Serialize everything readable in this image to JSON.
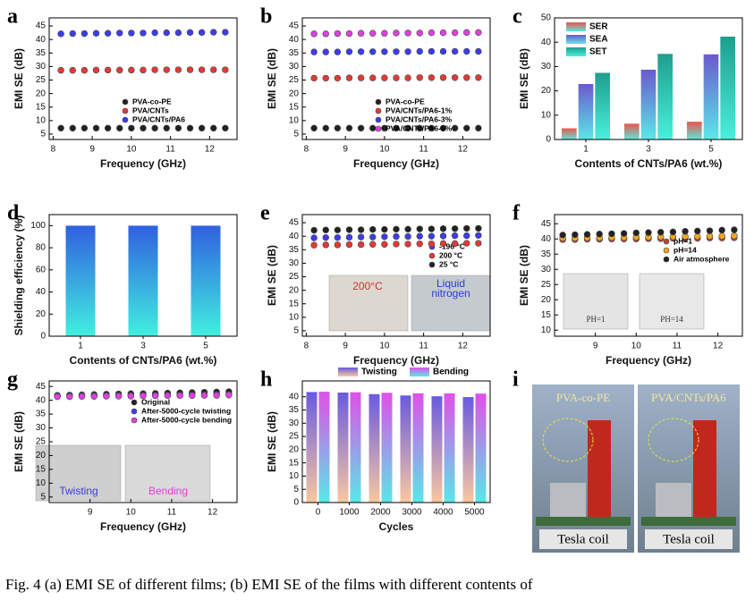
{
  "caption": "Fig. 4 (a) EMI SE of different films; (b) EMI SE of the films with different contents of",
  "photo": {
    "panel_label": "i",
    "labels": [
      "PVA-co-PE",
      "PVA/CNTs/PA6",
      "Tesla coil",
      "Tesla coil"
    ]
  },
  "chart_data": [
    {
      "type": "line",
      "panel_label": "a",
      "x_label": "Frequency (GHz)",
      "y_label": "EMI SE (dB)",
      "x": [
        8.2,
        8.5,
        8.8,
        9.1,
        9.4,
        9.7,
        10,
        10.3,
        10.6,
        10.9,
        11.2,
        11.5,
        11.8,
        12.1,
        12.4
      ],
      "xlim": [
        7.9,
        12.7
      ],
      "xticks": [
        8,
        9,
        10,
        11,
        12
      ],
      "ylim": [
        3,
        48
      ],
      "yticks": [
        5,
        10,
        15,
        20,
        25,
        30,
        35,
        40,
        45
      ],
      "legend": "lower center",
      "series": [
        {
          "name": "PVA-co-PE",
          "color": "#222222",
          "values": [
            7.2,
            7.2,
            7.2,
            7.2,
            7.2,
            7.2,
            7.2,
            7.2,
            7.2,
            7.2,
            7.2,
            7.2,
            7.2,
            7.2,
            7.2
          ]
        },
        {
          "name": "PVA/CNTs",
          "color": "#e53935",
          "values": [
            28.6,
            28.6,
            28.6,
            28.7,
            28.7,
            28.7,
            28.7,
            28.7,
            28.8,
            28.8,
            28.8,
            28.8,
            28.8,
            28.8,
            28.8
          ]
        },
        {
          "name": "PVA/CNTs/PA6",
          "color": "#3c3cf0",
          "values": [
            42.1,
            42.2,
            42.2,
            42.3,
            42.3,
            42.4,
            42.4,
            42.4,
            42.5,
            42.5,
            42.5,
            42.6,
            42.6,
            42.7,
            42.7
          ]
        }
      ]
    },
    {
      "type": "line",
      "panel_label": "b",
      "x_label": "Frequency (GHz)",
      "y_label": "EMI SE (dB)",
      "x": [
        8.2,
        8.5,
        8.8,
        9.1,
        9.4,
        9.7,
        10,
        10.3,
        10.6,
        10.9,
        11.2,
        11.5,
        11.8,
        12.1,
        12.4
      ],
      "xlim": [
        7.9,
        12.7
      ],
      "xticks": [
        8,
        9,
        10,
        11,
        12
      ],
      "ylim": [
        3,
        48
      ],
      "yticks": [
        5,
        10,
        15,
        20,
        25,
        30,
        35,
        40,
        45
      ],
      "legend": "lower center",
      "series": [
        {
          "name": "PVA-co-PE",
          "color": "#222222",
          "values": [
            7.2,
            7.2,
            7.2,
            7.2,
            7.2,
            7.2,
            7.2,
            7.2,
            7.2,
            7.2,
            7.2,
            7.2,
            7.2,
            7.2,
            7.2
          ]
        },
        {
          "name": "PVA/CNTs/PA6-1%",
          "color": "#e53935",
          "values": [
            25.7,
            25.7,
            25.7,
            25.8,
            25.8,
            25.8,
            25.8,
            25.8,
            25.8,
            25.9,
            25.9,
            25.9,
            25.9,
            25.9,
            25.9
          ]
        },
        {
          "name": "PVA/CNTs/PA6-3%",
          "color": "#3c3cf0",
          "values": [
            35.4,
            35.4,
            35.4,
            35.5,
            35.5,
            35.5,
            35.5,
            35.5,
            35.5,
            35.6,
            35.6,
            35.6,
            35.6,
            35.6,
            35.6
          ]
        },
        {
          "name": "PVA/CNTs/PA6-5%",
          "color": "#e040e0",
          "values": [
            42.1,
            42.1,
            42.2,
            42.2,
            42.3,
            42.3,
            42.3,
            42.4,
            42.4,
            42.4,
            42.5,
            42.5,
            42.5,
            42.6,
            42.6
          ]
        }
      ]
    },
    {
      "type": "bar",
      "panel_label": "c",
      "x_label": "Contents of CNTs/PA6 (wt.%)",
      "y_label": "EMI SE (dB)",
      "categories": [
        "1",
        "3",
        "5"
      ],
      "ylim": [
        0,
        50
      ],
      "yticks": [
        0,
        10,
        20,
        30,
        40,
        50
      ],
      "legend": "upper left",
      "series": [
        {
          "name": "SER",
          "color": "#e8554e",
          "gradient_to": "#5ce8d8",
          "values": [
            4.6,
            6.5,
            7.3
          ]
        },
        {
          "name": "SEA",
          "color": "#6a5acd",
          "gradient_to": "#5ce8e8",
          "values": [
            22.8,
            28.7,
            35.0
          ]
        },
        {
          "name": "SET",
          "color": "#1e9e8e",
          "gradient_to": "#48f0dc",
          "values": [
            27.4,
            35.2,
            42.3
          ]
        }
      ]
    },
    {
      "type": "bar",
      "panel_label": "d",
      "x_label": "Contents of CNTs/PA6 (wt.%)",
      "y_label": "Shielding efficiency (%)",
      "categories": [
        "1",
        "3",
        "5"
      ],
      "values": [
        99.99,
        99.99,
        99.99
      ],
      "color": "#3060e0",
      "gradient_to": "#40f0e0",
      "ylim": [
        0,
        110
      ],
      "yticks": [
        0,
        20,
        40,
        60,
        80,
        100
      ]
    },
    {
      "type": "line",
      "panel_label": "e",
      "x_label": "Frequency (GHz)",
      "y_label": "EMI SE (dB)",
      "x": [
        8.2,
        8.5,
        8.8,
        9.1,
        9.4,
        9.7,
        10,
        10.3,
        10.6,
        10.9,
        11.2,
        11.5,
        11.8,
        12.1,
        12.4
      ],
      "xlim": [
        7.9,
        12.7
      ],
      "xticks": [
        8,
        9,
        10,
        11,
        12
      ],
      "ylim": [
        3,
        48
      ],
      "yticks": [
        5,
        10,
        15,
        20,
        25,
        30,
        35,
        40,
        45
      ],
      "legend": "center right",
      "annotations": [
        "200°C",
        "Liquid",
        "nitrogen"
      ],
      "series": [
        {
          "name": "-196 °C",
          "color": "#3c3cf0",
          "values": [
            39.4,
            39.5,
            39.5,
            39.6,
            39.7,
            39.7,
            39.8,
            39.9,
            39.9,
            40.0,
            40.0,
            40.1,
            40.2,
            40.2,
            40.3
          ]
        },
        {
          "name": "200 °C",
          "color": "#e53935",
          "values": [
            36.7,
            36.8,
            36.8,
            36.9,
            36.9,
            37.0,
            37.0,
            37.1,
            37.1,
            37.2,
            37.2,
            37.3,
            37.3,
            37.4,
            37.4
          ]
        },
        {
          "name": "25 °C",
          "color": "#222222",
          "values": [
            42.2,
            42.3,
            42.3,
            42.4,
            42.4,
            42.5,
            42.5,
            42.6,
            42.6,
            42.7,
            42.7,
            42.8,
            42.8,
            42.9,
            42.9
          ]
        }
      ]
    },
    {
      "type": "line",
      "panel_label": "f",
      "x_label": "Frequency (GHz)",
      "y_label": "EMI SE (dB)",
      "x": [
        8.2,
        8.5,
        8.8,
        9.1,
        9.4,
        9.7,
        10,
        10.3,
        10.6,
        10.9,
        11.2,
        11.5,
        11.8,
        12.1,
        12.4
      ],
      "xlim": [
        8.0,
        12.6
      ],
      "xticks": [
        9,
        10,
        11,
        12
      ],
      "ylim": [
        8,
        48
      ],
      "yticks": [
        10,
        15,
        20,
        25,
        30,
        35,
        40,
        45
      ],
      "legend": "upper right",
      "annotations": [
        "PH=1",
        "PH=14"
      ],
      "series": [
        {
          "name": "pH=1",
          "color": "#b5473a",
          "values": [
            39.8,
            39.8,
            39.9,
            39.9,
            40.0,
            40.0,
            40.0,
            40.1,
            40.1,
            40.2,
            40.2,
            40.2,
            40.3,
            40.3,
            40.4
          ]
        },
        {
          "name": "pH=14",
          "color": "#f5a623",
          "values": [
            40.3,
            40.3,
            40.4,
            40.4,
            40.5,
            40.5,
            40.6,
            40.6,
            40.7,
            40.7,
            40.8,
            40.8,
            40.9,
            40.9,
            41.0
          ]
        },
        {
          "name": "Air atmosphere",
          "color": "#222222",
          "values": [
            41.3,
            41.4,
            41.5,
            41.6,
            41.7,
            41.8,
            42.0,
            42.1,
            42.2,
            42.3,
            42.5,
            42.6,
            42.7,
            42.9,
            43.0
          ]
        }
      ]
    },
    {
      "type": "line",
      "panel_label": "g",
      "x_label": "Frequency (GHz)",
      "y_label": "EMI SE (dB)",
      "x": [
        8.2,
        8.5,
        8.8,
        9.1,
        9.4,
        9.7,
        10,
        10.3,
        10.6,
        10.9,
        11.2,
        11.5,
        11.8,
        12.1,
        12.4
      ],
      "xlim": [
        8.0,
        12.6
      ],
      "xticks": [
        9,
        10,
        11,
        12
      ],
      "ylim": [
        3,
        47
      ],
      "yticks": [
        5,
        10,
        15,
        20,
        25,
        30,
        35,
        40,
        45
      ],
      "legend": "upper center",
      "annotations": [
        "Twisting",
        "Bending"
      ],
      "series": [
        {
          "name": "Original",
          "color": "#222222",
          "values": [
            41.8,
            41.9,
            42.0,
            42.1,
            42.2,
            42.3,
            42.4,
            42.4,
            42.5,
            42.6,
            42.7,
            42.8,
            42.9,
            43.0,
            43.1
          ]
        },
        {
          "name": "After-5000-cycle twisting",
          "color": "#3c3cf0",
          "values": [
            41.6,
            41.6,
            41.7,
            41.7,
            41.7,
            41.8,
            41.8,
            41.8,
            41.9,
            41.9,
            41.9,
            42.0,
            42.0,
            42.1,
            42.1
          ]
        },
        {
          "name": "After-5000-cycle bending",
          "color": "#e040e0",
          "values": [
            41.3,
            41.3,
            41.4,
            41.4,
            41.5,
            41.5,
            41.5,
            41.6,
            41.6,
            41.7,
            41.7,
            41.7,
            41.8,
            41.8,
            41.9
          ]
        }
      ]
    },
    {
      "type": "bar",
      "panel_label": "h",
      "x_label": "Cycles",
      "y_label": "EMI SE (dB)",
      "categories": [
        "0",
        "1000",
        "2000",
        "3000",
        "4000",
        "5000"
      ],
      "ylim": [
        0,
        46
      ],
      "yticks": [
        0,
        5,
        10,
        15,
        20,
        25,
        30,
        35,
        40
      ],
      "legend": "top",
      "series": [
        {
          "name": "Twisting",
          "color": "#6a5ae0",
          "gradient_to": "#f8c8a0",
          "values": [
            41.8,
            41.6,
            41.0,
            40.5,
            40.2,
            39.9
          ]
        },
        {
          "name": "Bending",
          "color": "#e050e8",
          "gradient_to": "#58e8e8",
          "values": [
            41.9,
            41.7,
            41.5,
            41.3,
            41.3,
            41.2
          ]
        }
      ]
    }
  ]
}
